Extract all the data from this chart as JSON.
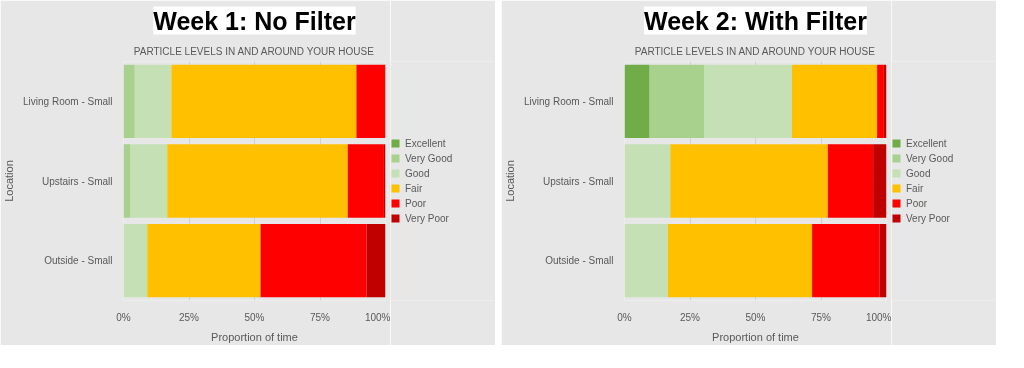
{
  "chart_data": [
    {
      "type": "bar",
      "orientation": "horizontal",
      "stacked": true,
      "title": "Week 1: No Filter",
      "subtitle": "PARTICLE LEVELS IN AND AROUND YOUR HOUSE",
      "xlabel": "Proportion of time",
      "ylabel": "Location",
      "categories": [
        "Living Room - Small",
        "Upstairs - Small",
        "Outside - Small"
      ],
      "series": [
        {
          "name": "Excellent",
          "color": "#70ad47",
          "values": [
            0,
            0,
            0
          ]
        },
        {
          "name": "Very Good",
          "color": "#a9d18e",
          "values": [
            4.3,
            2.5,
            0
          ]
        },
        {
          "name": "Good",
          "color": "#c5e0b4",
          "values": [
            14.0,
            14.2,
            9.1
          ]
        },
        {
          "name": "Fair",
          "color": "#ffc000",
          "values": [
            70.6,
            68.9,
            43.2
          ]
        },
        {
          "name": "Poor",
          "color": "#ff0000",
          "values": [
            11.1,
            13.8,
            40.5
          ]
        },
        {
          "name": "Very Poor",
          "color": "#c00000",
          "values": [
            0,
            0.6,
            7.2
          ]
        }
      ],
      "xlim": [
        0,
        100
      ],
      "xticks": [
        {
          "value": 0,
          "label": "0%"
        },
        {
          "value": 25,
          "label": "25%"
        },
        {
          "value": 50,
          "label": "50%"
        },
        {
          "value": 75,
          "label": "75%"
        },
        {
          "value": 100,
          "label": "100%"
        }
      ],
      "grid": "x",
      "legend": "right"
    },
    {
      "type": "bar",
      "orientation": "horizontal",
      "stacked": true,
      "title": "Week 2: With Filter",
      "subtitle": "PARTICLE LEVELS IN AND AROUND YOUR HOUSE",
      "xlabel": "Proportion of time",
      "ylabel": "Location",
      "categories": [
        "Living Room - Small",
        "Upstairs - Small",
        "Outside - Small"
      ],
      "series": [
        {
          "name": "Excellent",
          "color": "#70ad47",
          "values": [
            9.6,
            0,
            0
          ]
        },
        {
          "name": "Very Good",
          "color": "#a9d18e",
          "values": [
            20.9,
            0,
            0
          ]
        },
        {
          "name": "Good",
          "color": "#c5e0b4",
          "values": [
            33.4,
            17.5,
            16.6
          ]
        },
        {
          "name": "Fair",
          "color": "#ffc000",
          "values": [
            32.5,
            60.1,
            55.0
          ]
        },
        {
          "name": "Poor",
          "color": "#ff0000",
          "values": [
            2.6,
            17.3,
            25.8
          ]
        },
        {
          "name": "Very Poor",
          "color": "#c00000",
          "values": [
            1.0,
            5.1,
            2.6
          ]
        }
      ],
      "xlim": [
        0,
        100
      ],
      "xticks": [
        {
          "value": 0,
          "label": "0%"
        },
        {
          "value": 25,
          "label": "25%"
        },
        {
          "value": 50,
          "label": "50%"
        },
        {
          "value": 75,
          "label": "75%"
        },
        {
          "value": 100,
          "label": "100%"
        }
      ],
      "grid": "x",
      "legend": "right"
    }
  ]
}
